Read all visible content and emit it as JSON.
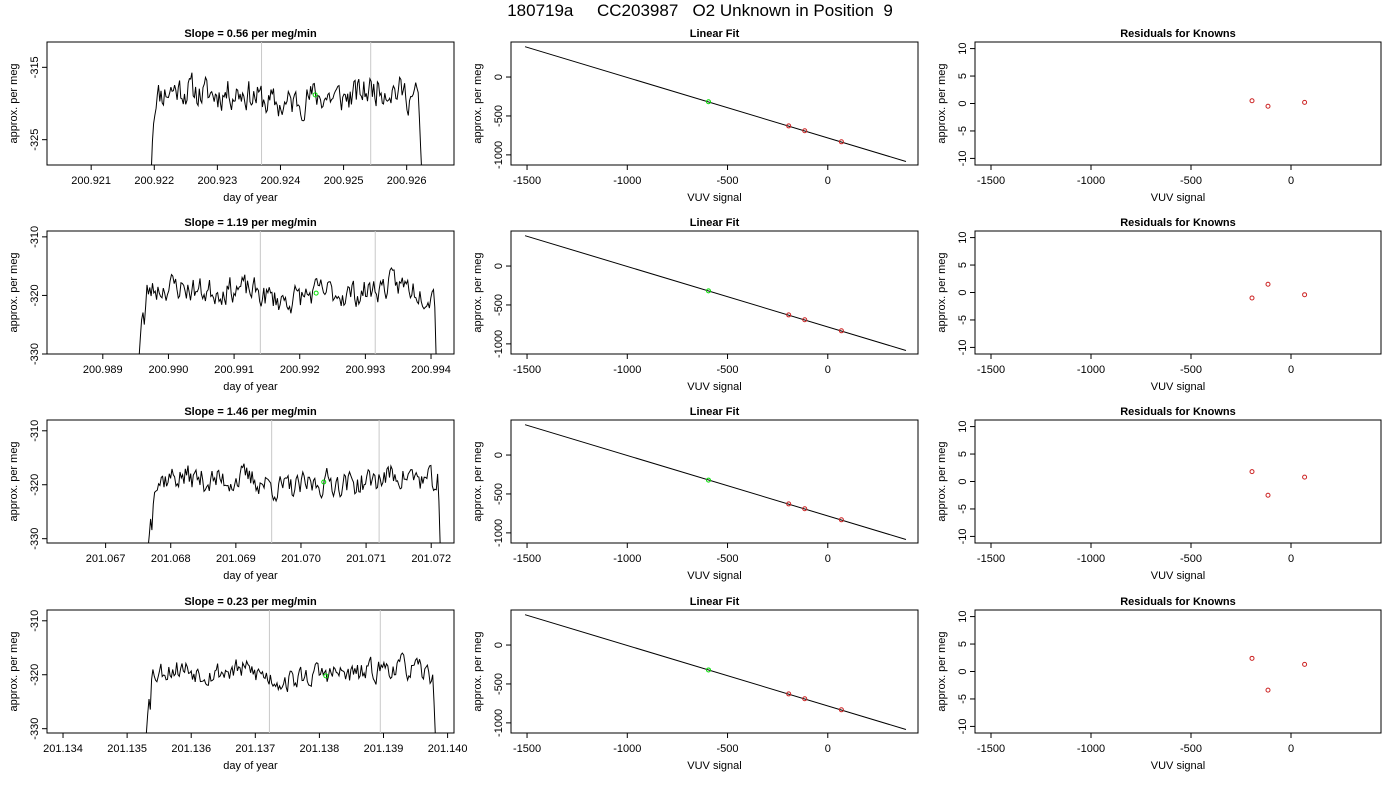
{
  "page": {
    "title": "180719a     CC203987   O2 Unknown in Position  9"
  },
  "colors": {
    "trace": "#000000",
    "unknown_point": "#00dd00",
    "known_point": "#cc2222",
    "marker_line": "#c8c8c8",
    "axis": "#000000"
  },
  "chart_data": [
    {
      "type": "line",
      "row": 1,
      "title": "Slope =  0.56  per meg/min",
      "xlabel": "day of year",
      "ylabel": "approx. per meg",
      "xlim": [
        200.9203,
        200.92675
      ],
      "ylim": [
        -328.5,
        -311.5
      ],
      "xticks": [
        200.921,
        200.922,
        200.923,
        200.924,
        200.925,
        200.926
      ],
      "xtick_labels": [
        "200.921",
        "200.922",
        "200.923",
        "200.924",
        "200.925",
        "200.926"
      ],
      "yticks": [
        -325,
        -315
      ],
      "ytick_labels": [
        "-325",
        "-315"
      ],
      "vlines": [
        200.9237,
        200.92543
      ],
      "unknown_point": {
        "x": 200.92455,
        "y": -318.8
      },
      "trace": {
        "x_start": 200.92195,
        "x_end": 200.92628,
        "y_start": -330.0,
        "y_end": -330.0,
        "ramp": [
          -325,
          -322.5,
          -321.5
        ],
        "tail": [
          -318.5,
          -322,
          -326,
          -330
        ],
        "mean": -319.0,
        "amp": 2.2,
        "seed": 11
      }
    },
    {
      "type": "scatter",
      "row": 1,
      "title": "Linear Fit",
      "xlabel": "VUV signal",
      "ylabel": "approx. per meg",
      "xlim": [
        -1580,
        450
      ],
      "ylim": [
        -1130,
        450
      ],
      "xticks": [
        -1500,
        -1000,
        -500,
        0
      ],
      "xtick_labels": [
        "-1500",
        "-1000",
        "-500",
        "0"
      ],
      "yticks": [
        -1000,
        -500,
        0
      ],
      "ytick_labels": [
        "-1000",
        "-500",
        "0"
      ],
      "fit_line": {
        "x": [
          -1510,
          390
        ],
        "y": [
          390,
          -1085
        ]
      },
      "unknown_points": [
        {
          "x": -595,
          "y": -318
        }
      ],
      "known_points": [
        {
          "x": -195,
          "y": -628
        },
        {
          "x": -115,
          "y": -690
        },
        {
          "x": 68,
          "y": -832
        }
      ]
    },
    {
      "type": "scatter",
      "row": 1,
      "title": "Residuals for Knowns",
      "xlabel": "VUV signal",
      "ylabel": "approx. per meg",
      "xlim": [
        -1580,
        450
      ],
      "ylim": [
        -11.2,
        11.2
      ],
      "xticks": [
        -1500,
        -1000,
        -500,
        0
      ],
      "xtick_labels": [
        "-1500",
        "-1000",
        "-500",
        "0"
      ],
      "yticks": [
        -10,
        -5,
        0,
        5,
        10
      ],
      "ytick_labels": [
        "-10",
        "-5",
        "0",
        "5",
        "10"
      ],
      "known_points": [
        {
          "x": -195,
          "y": 0.5
        },
        {
          "x": -115,
          "y": -0.5
        },
        {
          "x": 68,
          "y": 0.2
        }
      ]
    },
    {
      "type": "line",
      "row": 2,
      "title": "Slope =  1.19  per meg/min",
      "xlabel": "day of year",
      "ylabel": "approx. per meg",
      "xlim": [
        200.98815,
        200.99435
      ],
      "ylim": [
        -330.0,
        -309.0
      ],
      "xticks": [
        200.989,
        200.99,
        200.991,
        200.992,
        200.993,
        200.994
      ],
      "xtick_labels": [
        "200.989",
        "200.990",
        "200.991",
        "200.992",
        "200.993",
        "200.994"
      ],
      "yticks": [
        -330,
        -320,
        -310
      ],
      "ytick_labels": [
        "-330",
        "-320",
        "-310"
      ],
      "vlines": [
        200.9914,
        200.99315
      ],
      "unknown_point": {
        "x": 200.99225,
        "y": -319.6
      },
      "trace": {
        "x_start": 200.98955,
        "x_end": 200.99412,
        "y_start": -331.0,
        "y_end": -331.0,
        "ramp": [
          -327,
          -324,
          -323,
          -325,
          -322
        ],
        "tail": [
          -319,
          -322,
          -331
        ],
        "mean": -319.5,
        "amp": 2.3,
        "seed": 23
      }
    },
    {
      "type": "scatter",
      "row": 2,
      "title": "Linear Fit",
      "xlabel": "VUV signal",
      "ylabel": "approx. per meg",
      "xlim": [
        -1580,
        450
      ],
      "ylim": [
        -1130,
        450
      ],
      "xticks": [
        -1500,
        -1000,
        -500,
        0
      ],
      "xtick_labels": [
        "-1500",
        "-1000",
        "-500",
        "0"
      ],
      "yticks": [
        -1000,
        -500,
        0
      ],
      "ytick_labels": [
        "-1000",
        "-500",
        "0"
      ],
      "fit_line": {
        "x": [
          -1510,
          390
        ],
        "y": [
          390,
          -1085
        ]
      },
      "unknown_points": [
        {
          "x": -595,
          "y": -319
        }
      ],
      "known_points": [
        {
          "x": -195,
          "y": -628
        },
        {
          "x": -115,
          "y": -690
        },
        {
          "x": 68,
          "y": -832
        }
      ]
    },
    {
      "type": "scatter",
      "row": 2,
      "title": "Residuals for Knowns",
      "xlabel": "VUV signal",
      "ylabel": "approx. per meg",
      "xlim": [
        -1580,
        450
      ],
      "ylim": [
        -11.2,
        11.2
      ],
      "xticks": [
        -1500,
        -1000,
        -500,
        0
      ],
      "xtick_labels": [
        "-1500",
        "-1000",
        "-500",
        "0"
      ],
      "yticks": [
        -10,
        -5,
        0,
        5,
        10
      ],
      "ytick_labels": [
        "-10",
        "-5",
        "0",
        "5",
        "10"
      ],
      "known_points": [
        {
          "x": -195,
          "y": -1.0
        },
        {
          "x": -115,
          "y": 1.5
        },
        {
          "x": 68,
          "y": -0.4
        }
      ]
    },
    {
      "type": "line",
      "row": 3,
      "title": "Slope =  1.46  per meg/min",
      "xlabel": "day of year",
      "ylabel": "approx. per meg",
      "xlim": [
        201.0661,
        201.07235
      ],
      "ylim": [
        -330.8,
        -308.0
      ],
      "xticks": [
        201.067,
        201.068,
        201.069,
        201.07,
        201.071,
        201.072
      ],
      "xtick_labels": [
        "201.067",
        "201.068",
        "201.069",
        "201.070",
        "201.071",
        "201.072"
      ],
      "yticks": [
        -330,
        -320,
        -310
      ],
      "ytick_labels": [
        "-330",
        "-320",
        "-310"
      ],
      "vlines": [
        201.06955,
        201.0712
      ],
      "unknown_point": {
        "x": 201.07035,
        "y": -319.5
      },
      "trace": {
        "x_start": 201.06765,
        "x_end": 201.07218,
        "y_start": -332.0,
        "y_end": -332.0,
        "ramp": [
          -329,
          -326.5,
          -328,
          -323
        ],
        "tail": [
          -318,
          -323,
          -332
        ],
        "mean": -319.5,
        "amp": 2.4,
        "seed": 37
      }
    },
    {
      "type": "scatter",
      "row": 3,
      "title": "Linear Fit",
      "xlabel": "VUV signal",
      "ylabel": "approx. per meg",
      "xlim": [
        -1580,
        450
      ],
      "ylim": [
        -1130,
        450
      ],
      "xticks": [
        -1500,
        -1000,
        -500,
        0
      ],
      "xtick_labels": [
        "-1500",
        "-1000",
        "-500",
        "0"
      ],
      "yticks": [
        -1000,
        -500,
        0
      ],
      "ytick_labels": [
        "-1000",
        "-500",
        "0"
      ],
      "fit_line": {
        "x": [
          -1510,
          390
        ],
        "y": [
          390,
          -1085
        ]
      },
      "unknown_points": [
        {
          "x": -595,
          "y": -322
        }
      ],
      "known_points": [
        {
          "x": -195,
          "y": -628
        },
        {
          "x": -115,
          "y": -690
        },
        {
          "x": 68,
          "y": -832
        }
      ]
    },
    {
      "type": "scatter",
      "row": 3,
      "title": "Residuals for Knowns",
      "xlabel": "VUV signal",
      "ylabel": "approx. per meg",
      "xlim": [
        -1580,
        450
      ],
      "ylim": [
        -11.2,
        11.2
      ],
      "xticks": [
        -1500,
        -1000,
        -500,
        0
      ],
      "xtick_labels": [
        "-1500",
        "-1000",
        "-500",
        "0"
      ],
      "yticks": [
        -10,
        -5,
        0,
        5,
        10
      ],
      "ytick_labels": [
        "-10",
        "-5",
        "0",
        "5",
        "10"
      ],
      "known_points": [
        {
          "x": -195,
          "y": 1.8
        },
        {
          "x": -115,
          "y": -2.5
        },
        {
          "x": 68,
          "y": 0.8
        }
      ]
    },
    {
      "type": "line",
      "row": 4,
      "title": "Slope =  0.23  per meg/min",
      "xlabel": "day of year",
      "ylabel": "approx. per meg",
      "xlim": [
        201.13375,
        201.1401
      ],
      "ylim": [
        -330.8,
        -308.0
      ],
      "xticks": [
        201.134,
        201.135,
        201.136,
        201.137,
        201.138,
        201.139,
        201.14
      ],
      "xtick_labels": [
        "201.134",
        "201.135",
        "201.136",
        "201.137",
        "201.138",
        "201.139",
        "201.140"
      ],
      "yticks": [
        -330,
        -320,
        -310
      ],
      "ytick_labels": [
        "-330",
        "-320",
        "-310"
      ],
      "vlines": [
        201.13722,
        201.13895
      ],
      "unknown_point": {
        "x": 201.1381,
        "y": -320.2
      },
      "trace": {
        "x_start": 201.1353,
        "x_end": 201.13985,
        "y_start": -331.0,
        "y_end": -331.0,
        "ramp": [
          -327,
          -324,
          -326,
          -321
        ],
        "tail": [
          -320,
          -325,
          -331
        ],
        "mean": -319.8,
        "amp": 2.1,
        "seed": 53
      }
    },
    {
      "type": "scatter",
      "row": 4,
      "title": "Linear Fit",
      "xlabel": "VUV signal",
      "ylabel": "approx. per meg",
      "xlim": [
        -1580,
        450
      ],
      "ylim": [
        -1130,
        450
      ],
      "xticks": [
        -1500,
        -1000,
        -500,
        0
      ],
      "xtick_labels": [
        "-1500",
        "-1000",
        "-500",
        "0"
      ],
      "yticks": [
        -1000,
        -500,
        0
      ],
      "ytick_labels": [
        "-1000",
        "-500",
        "0"
      ],
      "fit_line": {
        "x": [
          -1510,
          390
        ],
        "y": [
          390,
          -1085
        ]
      },
      "unknown_points": [
        {
          "x": -595,
          "y": -320
        }
      ],
      "known_points": [
        {
          "x": -195,
          "y": -628
        },
        {
          "x": -115,
          "y": -690
        },
        {
          "x": 68,
          "y": -832
        }
      ]
    },
    {
      "type": "scatter",
      "row": 4,
      "title": "Residuals for Knowns",
      "xlabel": "VUV signal",
      "ylabel": "approx. per meg",
      "xlim": [
        -1580,
        450
      ],
      "ylim": [
        -11.2,
        11.2
      ],
      "xticks": [
        -1500,
        -1000,
        -500,
        0
      ],
      "xtick_labels": [
        "-1500",
        "-1000",
        "-500",
        "0"
      ],
      "yticks": [
        -10,
        -5,
        0,
        5,
        10
      ],
      "ytick_labels": [
        "-10",
        "-5",
        "0",
        "5",
        "10"
      ],
      "known_points": [
        {
          "x": -195,
          "y": 2.4
        },
        {
          "x": -115,
          "y": -3.4
        },
        {
          "x": 68,
          "y": 1.3
        }
      ]
    }
  ]
}
